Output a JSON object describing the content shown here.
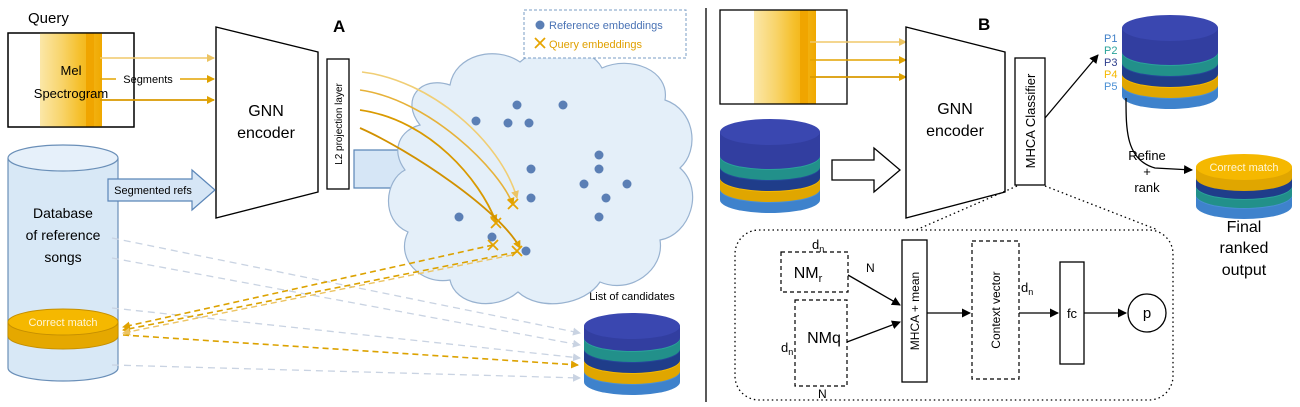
{
  "panel_a": {
    "label": "A",
    "query_title": "Query",
    "mel_line1": "Mel",
    "mel_line2": "Spectrogram",
    "segments_label": "Segments",
    "encoder_line1": "GNN",
    "encoder_line2": "encoder",
    "projection_label": "L2 projection layer",
    "segmented_refs_label": "Segmented refs",
    "database_line1": "Database",
    "database_line2": "of reference",
    "database_line3": "songs",
    "correct_match_label": "Correct match",
    "legend_reference": "Reference embeddings",
    "legend_query": "Query embeddings",
    "candidates_label": "List of candidates"
  },
  "panel_b": {
    "label": "B",
    "encoder_line1": "GNN",
    "encoder_line2": "encoder",
    "classifier_label": "MHCA Classifier",
    "p_labels": [
      "P1",
      "P2",
      "P3",
      "P4",
      "P5"
    ],
    "refine_line1": "Refine",
    "refine_line2": "+",
    "refine_line3": "rank",
    "correct_match_label": "Correct match",
    "final_line1": "Final",
    "final_line2": "ranked",
    "final_line3": "output",
    "nm_r_base": "NM",
    "nm_r_sub": "r",
    "nm_q_label": "NMq",
    "d_base": "d",
    "d_sub": "n",
    "n_label": "N",
    "mhca_mean_label": "MHCA + mean",
    "context_vector_label": "Context vector",
    "fc_label": "fc",
    "p_node_label": "p"
  },
  "colors": {
    "gold": "#f5b800",
    "gold_dark": "#d99a00",
    "gold_light": "#f7d67a",
    "blue_dot": "#5b7fb5",
    "blue_light": "#dbeaf7",
    "disc_navy": "#3a47b0",
    "disc_teal": "#2aa39a",
    "disc_dark": "#25479a",
    "disc_yellow": "#f5b800",
    "disc_blue": "#4a8fd4",
    "p1": "#3f7fc7",
    "p2": "#2aa39a",
    "p3": "#2e3e8c",
    "p4": "#f5b800",
    "p5": "#4a8fd4"
  }
}
